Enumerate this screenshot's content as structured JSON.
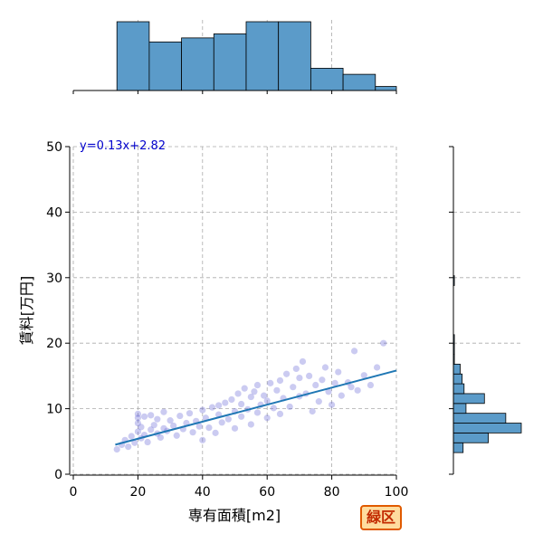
{
  "badge": "緑区",
  "chart_data": {
    "type": "scatter",
    "xlabel": "専有面積[m2]",
    "ylabel": "賃料[万円]",
    "xlim": [
      0,
      100
    ],
    "ylim": [
      0,
      50
    ],
    "xticks": [
      0,
      20,
      40,
      60,
      80,
      100
    ],
    "yticks": [
      0,
      10,
      20,
      30,
      40,
      50
    ],
    "grid": true,
    "annotation": "y=0.13x+2.82",
    "regression": {
      "slope": 0.13,
      "intercept": 2.82,
      "x_range": [
        13,
        100
      ]
    },
    "colors": {
      "points": "#6a6ad8",
      "line": "#1f77b4",
      "hist": "#5b9bc9",
      "annotation": "#0000cc"
    },
    "points": [
      [
        13.5,
        3.8
      ],
      [
        15,
        4.5
      ],
      [
        16,
        5.2
      ],
      [
        17,
        4.2
      ],
      [
        18,
        5.8
      ],
      [
        19,
        4.8
      ],
      [
        20,
        6.5
      ],
      [
        20,
        7.8
      ],
      [
        20,
        8.6
      ],
      [
        20,
        9.2
      ],
      [
        21,
        5.5
      ],
      [
        21,
        7.2
      ],
      [
        22,
        6.0
      ],
      [
        22,
        8.8
      ],
      [
        23,
        4.9
      ],
      [
        24,
        6.8
      ],
      [
        24,
        9.0
      ],
      [
        25,
        7.5
      ],
      [
        26,
        6.2
      ],
      [
        26,
        8.4
      ],
      [
        27,
        5.6
      ],
      [
        28,
        7.0
      ],
      [
        28,
        9.5
      ],
      [
        29,
        6.6
      ],
      [
        30,
        8.2
      ],
      [
        31,
        7.4
      ],
      [
        32,
        5.9
      ],
      [
        33,
        8.9
      ],
      [
        34,
        6.9
      ],
      [
        35,
        7.8
      ],
      [
        36,
        9.3
      ],
      [
        37,
        6.4
      ],
      [
        38,
        8.1
      ],
      [
        39,
        7.3
      ],
      [
        40,
        9.8
      ],
      [
        40,
        5.2
      ],
      [
        41,
        8.6
      ],
      [
        42,
        7.1
      ],
      [
        43,
        10.2
      ],
      [
        44,
        6.3
      ],
      [
        45,
        9.1
      ],
      [
        45,
        10.5
      ],
      [
        46,
        7.9
      ],
      [
        47,
        10.9
      ],
      [
        48,
        8.4
      ],
      [
        49,
        11.4
      ],
      [
        50,
        9.6
      ],
      [
        50,
        7.0
      ],
      [
        51,
        12.3
      ],
      [
        52,
        8.8
      ],
      [
        52,
        10.7
      ],
      [
        53,
        13.1
      ],
      [
        54,
        9.9
      ],
      [
        55,
        11.8
      ],
      [
        55,
        7.6
      ],
      [
        56,
        12.6
      ],
      [
        57,
        9.4
      ],
      [
        57,
        13.6
      ],
      [
        58,
        10.6
      ],
      [
        59,
        12.0
      ],
      [
        60,
        8.6
      ],
      [
        60,
        11.2
      ],
      [
        61,
        13.9
      ],
      [
        62,
        10.1
      ],
      [
        63,
        12.8
      ],
      [
        64,
        9.2
      ],
      [
        64,
        14.3
      ],
      [
        65,
        11.6
      ],
      [
        66,
        15.3
      ],
      [
        67,
        10.3
      ],
      [
        68,
        13.3
      ],
      [
        69,
        16.1
      ],
      [
        70,
        11.9
      ],
      [
        70,
        14.7
      ],
      [
        71,
        17.2
      ],
      [
        72,
        12.3
      ],
      [
        73,
        15.0
      ],
      [
        74,
        9.6
      ],
      [
        75,
        13.6
      ],
      [
        76,
        11.1
      ],
      [
        77,
        14.4
      ],
      [
        78,
        16.3
      ],
      [
        79,
        12.6
      ],
      [
        80,
        10.6
      ],
      [
        81,
        13.9
      ],
      [
        82,
        15.6
      ],
      [
        83,
        12.0
      ],
      [
        85,
        14.0
      ],
      [
        86,
        13.3
      ],
      [
        87,
        18.8
      ],
      [
        88,
        12.8
      ],
      [
        90,
        15.1
      ],
      [
        92,
        13.6
      ],
      [
        94,
        16.3
      ],
      [
        96,
        20.0
      ]
    ],
    "x_hist": {
      "bin_edges": [
        13.5,
        23.5,
        33.5,
        43.5,
        53.5,
        63.5,
        73.5,
        83.5,
        93.5,
        103.5
      ],
      "counts": [
        34,
        24,
        26,
        28,
        34,
        34,
        11,
        8,
        2
      ]
    },
    "y_hist": {
      "bin_edges": [
        3.3,
        4.8,
        6.3,
        7.8,
        9.3,
        10.8,
        12.3,
        13.8,
        15.3,
        16.8,
        18.3,
        19.8,
        21.3,
        22.8,
        24.3,
        25.8,
        27.3,
        28.8,
        30.3
      ],
      "counts": [
        10,
        36,
        70,
        54,
        13,
        32,
        11,
        9,
        7,
        1,
        1,
        1,
        0,
        0,
        0,
        0,
        0,
        1
      ]
    }
  }
}
